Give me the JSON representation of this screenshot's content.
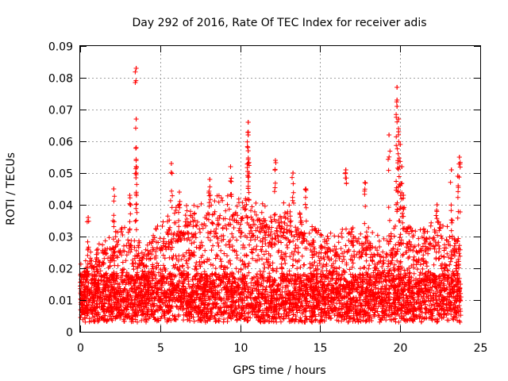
{
  "chart_data": {
    "type": "scatter",
    "title": "Day 292 of 2016, Rate Of TEC Index for receiver adis",
    "xlabel": "GPS time / hours",
    "ylabel": "ROTI / TECUs",
    "xlim": [
      0,
      25
    ],
    "ylim": [
      0,
      0.09
    ],
    "x_ticks": [
      0,
      5,
      10,
      15,
      20,
      25
    ],
    "x_tick_labels": [
      "0",
      "5",
      "10",
      "15",
      "20",
      "25"
    ],
    "y_ticks": [
      0,
      0.01,
      0.02,
      0.03,
      0.04,
      0.05,
      0.06,
      0.07,
      0.08,
      0.09
    ],
    "y_tick_labels": [
      "0",
      "0.01",
      "0.02",
      "0.03",
      "0.04",
      "0.05",
      "0.06",
      "0.07",
      "0.08",
      "0.09"
    ],
    "grid": true,
    "marker": "+",
    "marker_color": "#ff0000",
    "data_x_range": [
      0,
      23.8
    ],
    "baseline_roti": [
      0.003,
      0.025
    ],
    "peaks": [
      {
        "x": 0.5,
        "y": 0.036
      },
      {
        "x": 2.1,
        "y": 0.045
      },
      {
        "x": 3.1,
        "y": 0.043
      },
      {
        "x": 3.5,
        "y": 0.083
      },
      {
        "x": 3.5,
        "y": 0.067
      },
      {
        "x": 3.5,
        "y": 0.058
      },
      {
        "x": 3.5,
        "y": 0.052
      },
      {
        "x": 5.7,
        "y": 0.053
      },
      {
        "x": 6.2,
        "y": 0.044
      },
      {
        "x": 8.1,
        "y": 0.048
      },
      {
        "x": 9.4,
        "y": 0.052
      },
      {
        "x": 10.5,
        "y": 0.066
      },
      {
        "x": 10.5,
        "y": 0.062
      },
      {
        "x": 10.5,
        "y": 0.057
      },
      {
        "x": 10.5,
        "y": 0.053
      },
      {
        "x": 12.2,
        "y": 0.054
      },
      {
        "x": 13.3,
        "y": 0.05
      },
      {
        "x": 14.1,
        "y": 0.045
      },
      {
        "x": 16.6,
        "y": 0.051
      },
      {
        "x": 17.8,
        "y": 0.047
      },
      {
        "x": 19.3,
        "y": 0.062
      },
      {
        "x": 19.8,
        "y": 0.077
      },
      {
        "x": 19.8,
        "y": 0.073
      },
      {
        "x": 19.8,
        "y": 0.071
      },
      {
        "x": 19.9,
        "y": 0.067
      },
      {
        "x": 19.9,
        "y": 0.063
      },
      {
        "x": 20.0,
        "y": 0.059
      },
      {
        "x": 20.1,
        "y": 0.052
      },
      {
        "x": 20.2,
        "y": 0.043
      },
      {
        "x": 22.3,
        "y": 0.04
      },
      {
        "x": 23.2,
        "y": 0.051
      },
      {
        "x": 23.7,
        "y": 0.055
      },
      {
        "x": 23.6,
        "y": 0.049
      }
    ],
    "density_envelope": [
      {
        "x": 0.0,
        "y": 0.02
      },
      {
        "x": 1.0,
        "y": 0.028
      },
      {
        "x": 2.0,
        "y": 0.03
      },
      {
        "x": 3.0,
        "y": 0.032
      },
      {
        "x": 4.0,
        "y": 0.026
      },
      {
        "x": 5.0,
        "y": 0.033
      },
      {
        "x": 6.0,
        "y": 0.038
      },
      {
        "x": 7.0,
        "y": 0.038
      },
      {
        "x": 8.0,
        "y": 0.04
      },
      {
        "x": 9.0,
        "y": 0.042
      },
      {
        "x": 10.0,
        "y": 0.04
      },
      {
        "x": 11.0,
        "y": 0.04
      },
      {
        "x": 12.0,
        "y": 0.036
      },
      {
        "x": 13.0,
        "y": 0.04
      },
      {
        "x": 14.0,
        "y": 0.034
      },
      {
        "x": 15.0,
        "y": 0.03
      },
      {
        "x": 16.0,
        "y": 0.03
      },
      {
        "x": 17.0,
        "y": 0.032
      },
      {
        "x": 18.0,
        "y": 0.032
      },
      {
        "x": 19.0,
        "y": 0.028
      },
      {
        "x": 20.0,
        "y": 0.034
      },
      {
        "x": 21.0,
        "y": 0.03
      },
      {
        "x": 22.0,
        "y": 0.034
      },
      {
        "x": 23.0,
        "y": 0.032
      },
      {
        "x": 23.8,
        "y": 0.03
      }
    ]
  }
}
